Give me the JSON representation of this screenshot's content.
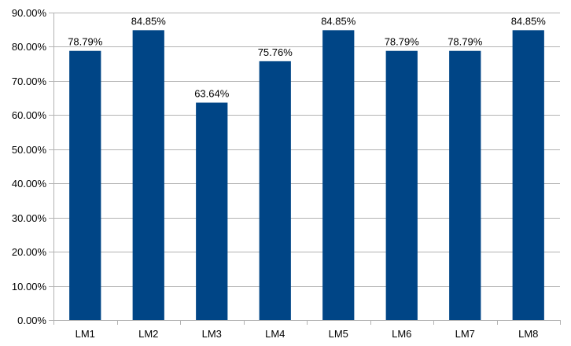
{
  "chart_data": {
    "type": "bar",
    "title": "",
    "xlabel": "",
    "ylabel": "",
    "categories": [
      "LM1",
      "LM2",
      "LM3",
      "LM4",
      "LM5",
      "LM6",
      "LM7",
      "LM8"
    ],
    "values": [
      78.79,
      84.85,
      63.64,
      75.76,
      84.85,
      78.79,
      78.79,
      84.85
    ],
    "data_labels": [
      "78.79%",
      "84.85%",
      "63.64%",
      "75.76%",
      "84.85%",
      "78.79%",
      "78.79%",
      "84.85%"
    ],
    "ylim": [
      0,
      90
    ],
    "y_ticks": [
      0,
      10,
      20,
      30,
      40,
      50,
      60,
      70,
      80,
      90
    ],
    "y_tick_labels": [
      "0.00%",
      "10.00%",
      "20.00%",
      "30.00%",
      "40.00%",
      "50.00%",
      "60.00%",
      "70.00%",
      "80.00%",
      "90.00%"
    ],
    "grid": true,
    "legend": "none",
    "bar_color": "#004586",
    "grid_color": "#b3b3b3"
  }
}
